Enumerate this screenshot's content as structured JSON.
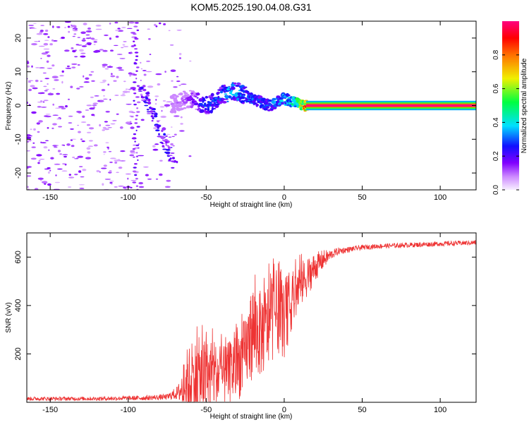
{
  "title": "KOM5.2025.190.04.08.G31",
  "spectrogram": {
    "type": "heatmap",
    "xlabel": "Height of straight line (km)",
    "ylabel": "Frequency (Hz)",
    "xlim": [
      -165,
      123
    ],
    "ylim": [
      -25,
      25
    ],
    "xticks": [
      -150,
      -100,
      -50,
      0,
      50,
      100
    ],
    "yticks": [
      -20,
      -10,
      0,
      10,
      20
    ],
    "colorbar": {
      "label": "Normalized spectral amplitude",
      "range": [
        0,
        1
      ],
      "ticks": [
        0.0,
        0.2,
        0.4,
        0.6,
        0.8
      ],
      "tick_labels": [
        "0.0",
        "0.2",
        "0.4",
        "0.6",
        "0.8"
      ]
    },
    "trace": {
      "x": [
        -70,
        -65,
        -60,
        -55,
        -50,
        -45,
        -40,
        -35,
        -30,
        -25,
        -20,
        -15,
        -10,
        -5,
        0,
        5,
        10,
        15,
        30,
        60,
        90,
        123
      ],
      "frequency_hz": [
        0.5,
        1.5,
        2,
        1,
        0,
        1,
        3,
        4,
        4,
        3,
        2,
        1,
        0,
        1,
        2,
        1,
        0.5,
        0,
        0,
        0,
        0,
        0
      ],
      "amplitude": [
        0.1,
        0.12,
        0.18,
        0.25,
        0.3,
        0.3,
        0.35,
        0.4,
        0.4,
        0.35,
        0.38,
        0.3,
        0.32,
        0.35,
        0.4,
        0.45,
        0.6,
        1,
        1,
        1,
        1,
        1
      ]
    }
  },
  "snr": {
    "type": "line",
    "xlabel": "Height of straight line (km)",
    "ylabel": "SNR (v/v)",
    "xlim": [
      -165,
      123
    ],
    "ylim": [
      0,
      700
    ],
    "xticks": [
      -150,
      -100,
      -50,
      0,
      50,
      100
    ],
    "yticks": [
      200,
      400,
      600
    ],
    "series": [
      {
        "color": "#ee3333",
        "envelope_x": [
          -165,
          -120,
          -90,
          -75,
          -68,
          -62,
          -55,
          -45,
          -38,
          -30,
          -25,
          -20,
          -15,
          -10,
          -5,
          0,
          5,
          10,
          15,
          20,
          25,
          30,
          35,
          40,
          50,
          60,
          80,
          100,
          123
        ],
        "envelope_y": [
          15,
          15,
          18,
          22,
          40,
          80,
          100,
          110,
          110,
          150,
          200,
          300,
          280,
          320,
          380,
          330,
          420,
          480,
          520,
          560,
          590,
          610,
          625,
          630,
          640,
          645,
          650,
          655,
          660
        ],
        "envelope_amplitude": [
          8,
          8,
          10,
          12,
          30,
          150,
          170,
          140,
          120,
          150,
          150,
          200,
          180,
          180,
          170,
          150,
          120,
          100,
          80,
          60,
          40,
          20,
          15,
          12,
          10,
          10,
          10,
          10,
          10
        ]
      }
    ]
  }
}
